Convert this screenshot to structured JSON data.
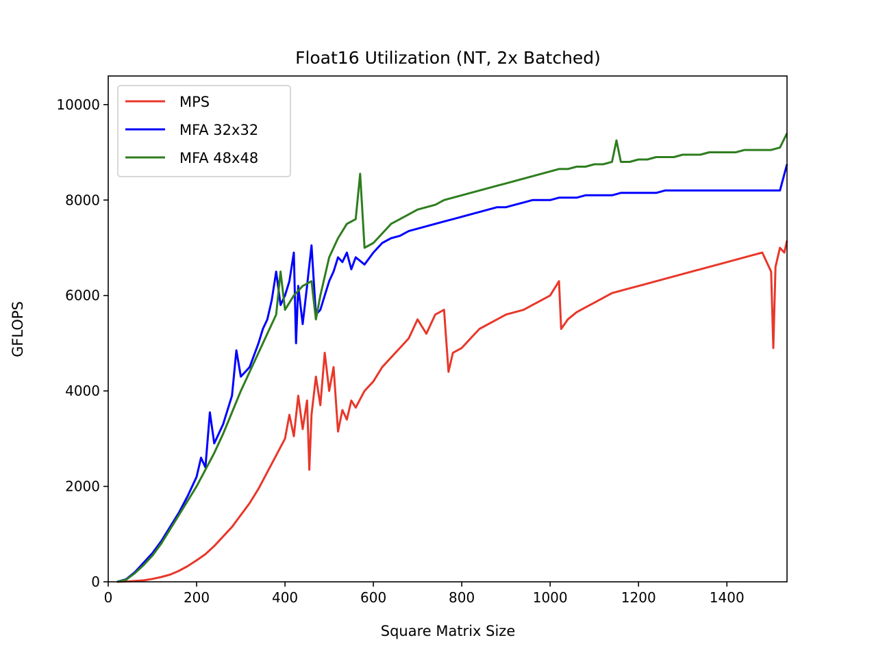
{
  "chart_data": {
    "type": "line",
    "title": "Float16 Utilization (NT, 2x Batched)",
    "xlabel": "Square Matrix Size",
    "ylabel": "GFLOPS",
    "xlim": [
      0,
      1536
    ],
    "ylim": [
      0,
      10600
    ],
    "xticks": [
      0,
      200,
      400,
      600,
      800,
      1000,
      1200,
      1400
    ],
    "yticks": [
      0,
      2000,
      4000,
      6000,
      8000,
      10000
    ],
    "grid": false,
    "legend": {
      "position": "top-left"
    },
    "series": [
      {
        "name": "MPS",
        "color": "#e8372a",
        "points": [
          [
            20,
            0
          ],
          [
            50,
            10
          ],
          [
            80,
            30
          ],
          [
            100,
            60
          ],
          [
            120,
            100
          ],
          [
            140,
            150
          ],
          [
            160,
            230
          ],
          [
            180,
            330
          ],
          [
            200,
            450
          ],
          [
            220,
            580
          ],
          [
            240,
            750
          ],
          [
            260,
            950
          ],
          [
            280,
            1150
          ],
          [
            300,
            1400
          ],
          [
            320,
            1650
          ],
          [
            340,
            1950
          ],
          [
            360,
            2300
          ],
          [
            380,
            2650
          ],
          [
            400,
            3000
          ],
          [
            410,
            3500
          ],
          [
            420,
            3050
          ],
          [
            430,
            3900
          ],
          [
            440,
            3200
          ],
          [
            450,
            3800
          ],
          [
            455,
            2350
          ],
          [
            460,
            3500
          ],
          [
            470,
            4300
          ],
          [
            480,
            3700
          ],
          [
            490,
            4800
          ],
          [
            500,
            4000
          ],
          [
            510,
            4500
          ],
          [
            520,
            3150
          ],
          [
            530,
            3600
          ],
          [
            540,
            3400
          ],
          [
            550,
            3800
          ],
          [
            560,
            3650
          ],
          [
            580,
            4000
          ],
          [
            600,
            4200
          ],
          [
            620,
            4500
          ],
          [
            640,
            4700
          ],
          [
            660,
            4900
          ],
          [
            680,
            5100
          ],
          [
            700,
            5500
          ],
          [
            720,
            5200
          ],
          [
            740,
            5600
          ],
          [
            760,
            5700
          ],
          [
            770,
            4400
          ],
          [
            780,
            4800
          ],
          [
            800,
            4900
          ],
          [
            820,
            5100
          ],
          [
            840,
            5300
          ],
          [
            860,
            5400
          ],
          [
            880,
            5500
          ],
          [
            900,
            5600
          ],
          [
            920,
            5650
          ],
          [
            940,
            5700
          ],
          [
            960,
            5800
          ],
          [
            980,
            5900
          ],
          [
            1000,
            6000
          ],
          [
            1020,
            6300
          ],
          [
            1025,
            5300
          ],
          [
            1040,
            5500
          ],
          [
            1060,
            5650
          ],
          [
            1080,
            5750
          ],
          [
            1100,
            5850
          ],
          [
            1120,
            5950
          ],
          [
            1140,
            6050
          ],
          [
            1160,
            6100
          ],
          [
            1180,
            6150
          ],
          [
            1200,
            6200
          ],
          [
            1220,
            6250
          ],
          [
            1240,
            6300
          ],
          [
            1260,
            6350
          ],
          [
            1280,
            6400
          ],
          [
            1300,
            6450
          ],
          [
            1320,
            6500
          ],
          [
            1340,
            6550
          ],
          [
            1360,
            6600
          ],
          [
            1380,
            6650
          ],
          [
            1400,
            6700
          ],
          [
            1420,
            6750
          ],
          [
            1440,
            6800
          ],
          [
            1460,
            6850
          ],
          [
            1480,
            6900
          ],
          [
            1500,
            6500
          ],
          [
            1505,
            4900
          ],
          [
            1510,
            6600
          ],
          [
            1520,
            7000
          ],
          [
            1530,
            6900
          ],
          [
            1536,
            7150
          ]
        ]
      },
      {
        "name": "MFA 32x32",
        "color": "#0000ff",
        "points": [
          [
            20,
            0
          ],
          [
            40,
            50
          ],
          [
            60,
            200
          ],
          [
            80,
            400
          ],
          [
            100,
            600
          ],
          [
            120,
            850
          ],
          [
            140,
            1150
          ],
          [
            160,
            1450
          ],
          [
            180,
            1800
          ],
          [
            200,
            2200
          ],
          [
            210,
            2600
          ],
          [
            220,
            2400
          ],
          [
            230,
            3550
          ],
          [
            240,
            2900
          ],
          [
            260,
            3300
          ],
          [
            280,
            3900
          ],
          [
            290,
            4850
          ],
          [
            300,
            4300
          ],
          [
            320,
            4500
          ],
          [
            340,
            5000
          ],
          [
            350,
            5300
          ],
          [
            360,
            5500
          ],
          [
            370,
            5900
          ],
          [
            380,
            6500
          ],
          [
            390,
            5800
          ],
          [
            400,
            6000
          ],
          [
            410,
            6300
          ],
          [
            420,
            6900
          ],
          [
            425,
            5000
          ],
          [
            430,
            6200
          ],
          [
            440,
            5400
          ],
          [
            450,
            6200
          ],
          [
            460,
            7050
          ],
          [
            470,
            5600
          ],
          [
            480,
            5700
          ],
          [
            490,
            6000
          ],
          [
            500,
            6300
          ],
          [
            510,
            6500
          ],
          [
            520,
            6800
          ],
          [
            530,
            6700
          ],
          [
            540,
            6900
          ],
          [
            550,
            6550
          ],
          [
            560,
            6800
          ],
          [
            580,
            6650
          ],
          [
            600,
            6900
          ],
          [
            620,
            7100
          ],
          [
            640,
            7200
          ],
          [
            660,
            7250
          ],
          [
            680,
            7350
          ],
          [
            700,
            7400
          ],
          [
            720,
            7450
          ],
          [
            740,
            7500
          ],
          [
            760,
            7550
          ],
          [
            780,
            7600
          ],
          [
            800,
            7650
          ],
          [
            820,
            7700
          ],
          [
            840,
            7750
          ],
          [
            860,
            7800
          ],
          [
            880,
            7850
          ],
          [
            900,
            7850
          ],
          [
            920,
            7900
          ],
          [
            940,
            7950
          ],
          [
            960,
            8000
          ],
          [
            980,
            8000
          ],
          [
            1000,
            8000
          ],
          [
            1020,
            8050
          ],
          [
            1040,
            8050
          ],
          [
            1060,
            8050
          ],
          [
            1080,
            8100
          ],
          [
            1100,
            8100
          ],
          [
            1120,
            8100
          ],
          [
            1140,
            8100
          ],
          [
            1160,
            8150
          ],
          [
            1180,
            8150
          ],
          [
            1200,
            8150
          ],
          [
            1220,
            8150
          ],
          [
            1240,
            8150
          ],
          [
            1260,
            8200
          ],
          [
            1280,
            8200
          ],
          [
            1300,
            8200
          ],
          [
            1320,
            8200
          ],
          [
            1340,
            8200
          ],
          [
            1360,
            8200
          ],
          [
            1380,
            8200
          ],
          [
            1400,
            8200
          ],
          [
            1420,
            8200
          ],
          [
            1440,
            8200
          ],
          [
            1460,
            8200
          ],
          [
            1480,
            8200
          ],
          [
            1500,
            8200
          ],
          [
            1520,
            8200
          ],
          [
            1536,
            8750
          ]
        ]
      },
      {
        "name": "MFA 48x48",
        "color": "#2e7d1e",
        "points": [
          [
            20,
            0
          ],
          [
            40,
            40
          ],
          [
            60,
            180
          ],
          [
            80,
            350
          ],
          [
            100,
            550
          ],
          [
            120,
            800
          ],
          [
            140,
            1100
          ],
          [
            160,
            1400
          ],
          [
            180,
            1700
          ],
          [
            200,
            2000
          ],
          [
            220,
            2350
          ],
          [
            240,
            2700
          ],
          [
            260,
            3100
          ],
          [
            280,
            3550
          ],
          [
            300,
            4000
          ],
          [
            320,
            4400
          ],
          [
            340,
            4800
          ],
          [
            360,
            5200
          ],
          [
            380,
            5600
          ],
          [
            390,
            6500
          ],
          [
            400,
            5700
          ],
          [
            420,
            6000
          ],
          [
            440,
            6200
          ],
          [
            460,
            6300
          ],
          [
            470,
            5500
          ],
          [
            480,
            6000
          ],
          [
            500,
            6800
          ],
          [
            520,
            7200
          ],
          [
            540,
            7500
          ],
          [
            560,
            7600
          ],
          [
            570,
            8550
          ],
          [
            580,
            7000
          ],
          [
            600,
            7100
          ],
          [
            620,
            7300
          ],
          [
            640,
            7500
          ],
          [
            660,
            7600
          ],
          [
            680,
            7700
          ],
          [
            700,
            7800
          ],
          [
            720,
            7850
          ],
          [
            740,
            7900
          ],
          [
            760,
            8000
          ],
          [
            780,
            8050
          ],
          [
            800,
            8100
          ],
          [
            820,
            8150
          ],
          [
            840,
            8200
          ],
          [
            860,
            8250
          ],
          [
            880,
            8300
          ],
          [
            900,
            8350
          ],
          [
            920,
            8400
          ],
          [
            940,
            8450
          ],
          [
            960,
            8500
          ],
          [
            980,
            8550
          ],
          [
            1000,
            8600
          ],
          [
            1020,
            8650
          ],
          [
            1040,
            8650
          ],
          [
            1060,
            8700
          ],
          [
            1080,
            8700
          ],
          [
            1100,
            8750
          ],
          [
            1120,
            8750
          ],
          [
            1140,
            8800
          ],
          [
            1150,
            9250
          ],
          [
            1160,
            8800
          ],
          [
            1180,
            8800
          ],
          [
            1200,
            8850
          ],
          [
            1220,
            8850
          ],
          [
            1240,
            8900
          ],
          [
            1260,
            8900
          ],
          [
            1280,
            8900
          ],
          [
            1300,
            8950
          ],
          [
            1320,
            8950
          ],
          [
            1340,
            8950
          ],
          [
            1360,
            9000
          ],
          [
            1380,
            9000
          ],
          [
            1400,
            9000
          ],
          [
            1420,
            9000
          ],
          [
            1440,
            9050
          ],
          [
            1460,
            9050
          ],
          [
            1480,
            9050
          ],
          [
            1500,
            9050
          ],
          [
            1520,
            9100
          ],
          [
            1536,
            9400
          ]
        ]
      }
    ]
  }
}
